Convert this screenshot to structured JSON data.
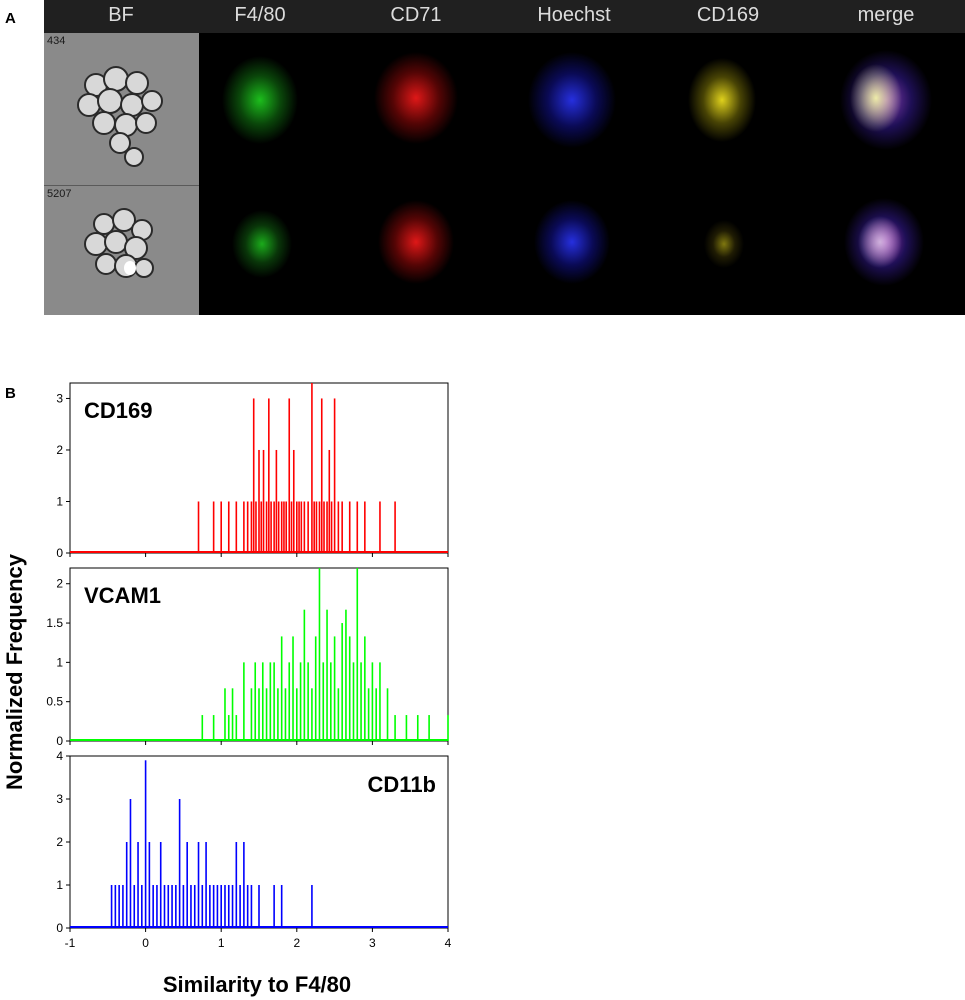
{
  "panel_a": {
    "letter": "A",
    "channels": [
      "BF",
      "F4/80",
      "CD71",
      "Hoechst",
      "CD169",
      "merge"
    ],
    "rows": [
      {
        "id": "434"
      },
      {
        "id": "5207"
      }
    ],
    "channel_colors": {
      "F4/80": "#19d219",
      "CD71": "#e01414",
      "Hoechst": "#1e28e6",
      "CD169": "#e6d21e"
    }
  },
  "panel_b": {
    "letter": "B",
    "ylabel": "Normalized Frequency",
    "xlabel": "Similarity to F4/80"
  },
  "chart_data": [
    {
      "type": "bar",
      "name": "CD169",
      "color": "#ff0000",
      "xlim": [
        -1,
        4
      ],
      "ylim": [
        0,
        3.3
      ],
      "yticks": [
        0,
        1,
        2,
        3
      ],
      "xticks": [
        -1,
        0,
        1,
        2,
        3,
        4
      ],
      "x": [
        0.7,
        0.9,
        1.0,
        1.1,
        1.2,
        1.3,
        1.35,
        1.4,
        1.43,
        1.46,
        1.5,
        1.53,
        1.56,
        1.6,
        1.63,
        1.66,
        1.7,
        1.73,
        1.76,
        1.8,
        1.83,
        1.86,
        1.9,
        1.93,
        1.96,
        2.0,
        2.03,
        2.06,
        2.1,
        2.15,
        2.2,
        2.23,
        2.26,
        2.3,
        2.33,
        2.36,
        2.4,
        2.43,
        2.46,
        2.5,
        2.55,
        2.6,
        2.7,
        2.8,
        2.9,
        3.1,
        3.3
      ],
      "values": [
        1,
        1,
        1,
        1,
        1,
        1,
        1,
        1,
        3,
        1,
        2,
        1,
        2,
        1,
        3,
        1,
        1,
        2,
        1,
        1,
        1,
        1,
        3,
        1,
        2,
        1,
        1,
        1,
        1,
        1,
        3.3,
        1,
        1,
        1,
        3,
        1,
        1,
        2,
        1,
        3,
        1,
        1,
        1,
        1,
        1,
        1,
        1
      ]
    },
    {
      "type": "bar",
      "name": "VCAM1",
      "color": "#00ff00",
      "xlim": [
        -1,
        4
      ],
      "ylim": [
        0,
        2.2
      ],
      "yticks": [
        0,
        0.5,
        1,
        1.5,
        2
      ],
      "xticks": [
        -1,
        0,
        1,
        2,
        3,
        4
      ],
      "x": [
        0.75,
        0.9,
        1.05,
        1.1,
        1.15,
        1.2,
        1.3,
        1.4,
        1.45,
        1.5,
        1.55,
        1.6,
        1.65,
        1.7,
        1.75,
        1.8,
        1.85,
        1.9,
        1.95,
        2.0,
        2.05,
        2.1,
        2.15,
        2.2,
        2.25,
        2.3,
        2.35,
        2.4,
        2.45,
        2.5,
        2.55,
        2.6,
        2.65,
        2.7,
        2.75,
        2.8,
        2.85,
        2.9,
        2.95,
        3.0,
        3.05,
        3.1,
        3.2,
        3.3,
        3.45,
        3.6,
        3.75,
        4.0
      ],
      "values": [
        0.33,
        0.33,
        0.67,
        0.33,
        0.67,
        0.33,
        1,
        0.67,
        1,
        0.67,
        1,
        0.67,
        1,
        1,
        0.67,
        1.33,
        0.67,
        1,
        1.33,
        0.67,
        1,
        1.67,
        1,
        0.67,
        1.33,
        2.2,
        1,
        1.67,
        1,
        1.33,
        0.67,
        1.5,
        1.67,
        1.33,
        1,
        2.2,
        1,
        1.33,
        0.67,
        1,
        0.67,
        1,
        0.67,
        0.33,
        0.33,
        0.33,
        0.33,
        0.33
      ]
    },
    {
      "type": "bar",
      "name": "CD11b",
      "color": "#0000ff",
      "xlim": [
        -1,
        4
      ],
      "ylim": [
        0,
        4
      ],
      "yticks": [
        0,
        1,
        2,
        3,
        4
      ],
      "xticks": [
        -1,
        0,
        1,
        2,
        3,
        4
      ],
      "x": [
        -0.45,
        -0.4,
        -0.35,
        -0.3,
        -0.25,
        -0.2,
        -0.15,
        -0.1,
        -0.05,
        0.0,
        0.05,
        0.1,
        0.15,
        0.2,
        0.25,
        0.3,
        0.35,
        0.4,
        0.45,
        0.5,
        0.55,
        0.6,
        0.65,
        0.7,
        0.75,
        0.8,
        0.85,
        0.9,
        0.95,
        1.0,
        1.05,
        1.1,
        1.15,
        1.2,
        1.25,
        1.3,
        1.35,
        1.4,
        1.5,
        1.7,
        1.8,
        2.2
      ],
      "values": [
        1,
        1,
        1,
        1,
        2,
        3,
        1,
        2,
        1,
        3.9,
        2,
        1,
        1,
        2,
        1,
        1,
        1,
        1,
        3,
        1,
        2,
        1,
        1,
        2,
        1,
        2,
        1,
        1,
        1,
        1,
        1,
        1,
        1,
        2,
        1,
        2,
        1,
        1,
        1,
        1,
        1,
        1
      ]
    }
  ]
}
